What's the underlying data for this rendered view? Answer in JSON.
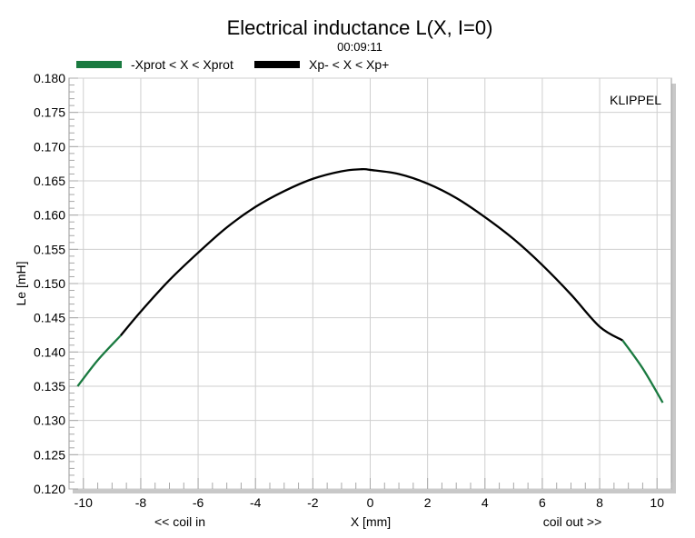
{
  "chart_data": {
    "type": "line",
    "title": "Electrical inductance L(X, I=0)",
    "subtitle": "00:09:11",
    "brand": "KLIPPEL",
    "xlabel": "X [mm]",
    "xlabel_left": "<< coil in",
    "xlabel_right": "coil out >>",
    "ylabel": "Le [mH]",
    "xlim": [
      -10.5,
      10.5
    ],
    "ylim": [
      0.12,
      0.18
    ],
    "x_ticks": [
      -10,
      -8,
      -6,
      -4,
      -2,
      0,
      2,
      4,
      6,
      8,
      10
    ],
    "y_ticks": [
      0.12,
      0.125,
      0.13,
      0.135,
      0.14,
      0.145,
      0.15,
      0.155,
      0.16,
      0.165,
      0.17,
      0.175,
      0.18
    ],
    "grid": true,
    "legend_position": "top-left",
    "series": [
      {
        "name": "-Xprot < X < Xprot",
        "color": "#1a7a40",
        "x": [
          -10.2,
          -9.5,
          -8.7,
          8.8,
          9.5,
          10.2
        ],
        "y": [
          0.135,
          0.1388,
          0.1424,
          0.1417,
          0.1376,
          0.1326
        ]
      },
      {
        "name": "Xp- < X < Xp+",
        "color": "#000000",
        "x": [
          -8.7,
          -8,
          -7,
          -6,
          -5,
          -4,
          -3,
          -2,
          -1,
          -0.3,
          0,
          1,
          2,
          3,
          4,
          5,
          6,
          7,
          8,
          8.8
        ],
        "y": [
          0.1424,
          0.1459,
          0.1505,
          0.1545,
          0.1582,
          0.1612,
          0.1635,
          0.1653,
          0.1664,
          0.1667,
          0.1666,
          0.166,
          0.1646,
          0.1625,
          0.1597,
          0.1565,
          0.1527,
          0.1484,
          0.1437,
          0.1417
        ]
      }
    ]
  }
}
